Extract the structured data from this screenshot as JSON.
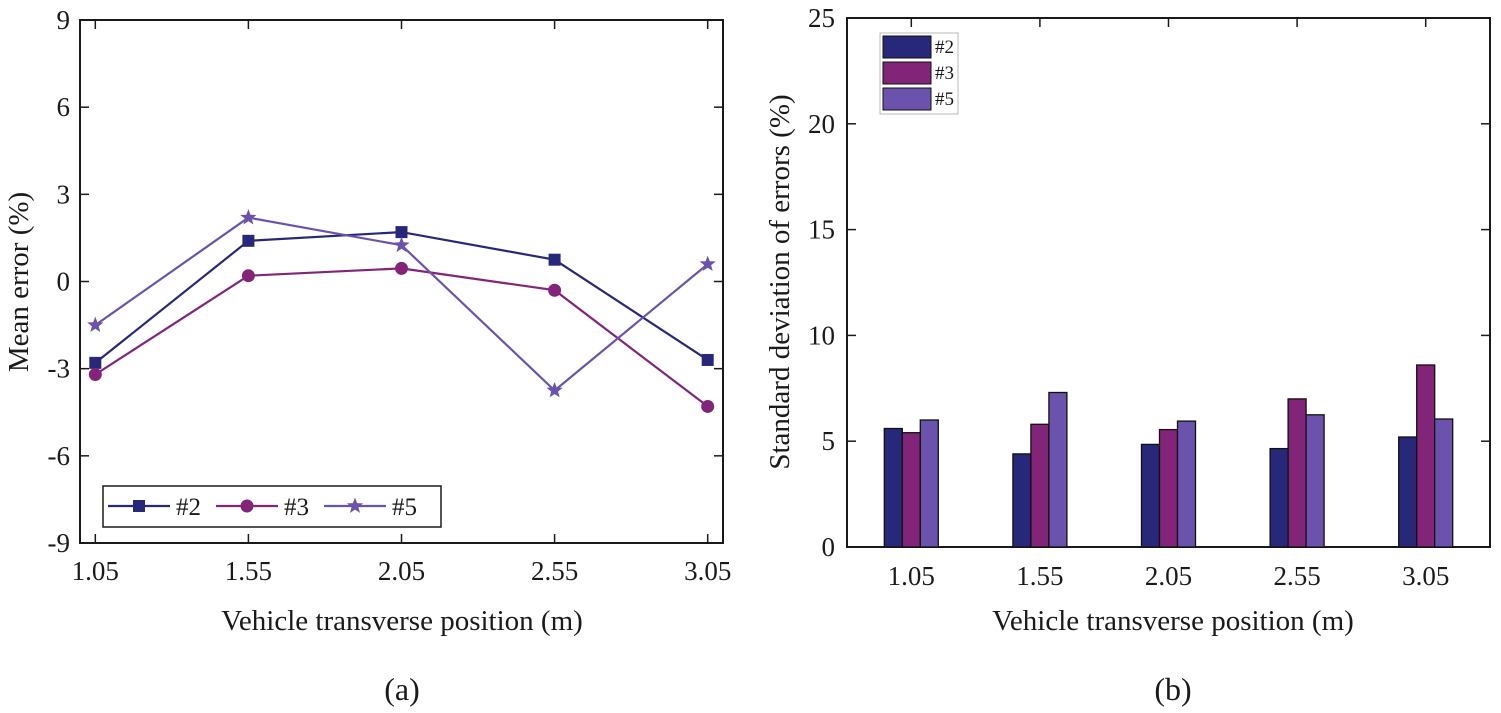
{
  "chart_data": [
    {
      "type": "line",
      "panel_label": "(a)",
      "title": "",
      "xlabel": "Vehicle transverse position (m)",
      "ylabel": "Mean error (%)",
      "x": [
        1.05,
        1.55,
        2.05,
        2.55,
        3.05
      ],
      "x_tick_labels": [
        "1.05",
        "1.55",
        "2.05",
        "2.55",
        "3.05"
      ],
      "xlim": [
        1.0,
        3.1
      ],
      "ylim": [
        -9,
        9
      ],
      "y_ticks": [
        -9,
        -6,
        -3,
        0,
        3,
        6,
        9
      ],
      "y_tick_labels": [
        "-9",
        "-6",
        "-3",
        "0",
        "3",
        "6",
        "9"
      ],
      "grid": false,
      "legend_position": "bottom-left",
      "series": [
        {
          "name": "#2",
          "marker": "square",
          "color": "#28287a",
          "values": [
            -2.8,
            1.4,
            1.7,
            0.75,
            -2.7
          ]
        },
        {
          "name": "#3",
          "marker": "circle",
          "color": "#822478",
          "values": [
            -3.2,
            0.2,
            0.45,
            -0.3,
            -4.3
          ]
        },
        {
          "name": "#5",
          "marker": "star",
          "color": "#6b53ad",
          "values": [
            -1.5,
            2.2,
            1.25,
            -3.75,
            0.6
          ]
        }
      ]
    },
    {
      "type": "bar",
      "panel_label": "(b)",
      "title": "",
      "xlabel": "Vehicle transverse position (m)",
      "ylabel": "Standard deviation of errors (%)",
      "categories": [
        "1.05",
        "1.55",
        "2.05",
        "2.55",
        "3.05"
      ],
      "ylim": [
        0,
        25
      ],
      "y_ticks": [
        0,
        5,
        10,
        15,
        20,
        25
      ],
      "y_tick_labels": [
        "0",
        "5",
        "10",
        "15",
        "20",
        "25"
      ],
      "grid": false,
      "legend_position": "top-left",
      "series": [
        {
          "name": "#2",
          "color": "#28287a",
          "values": [
            5.6,
            4.4,
            4.85,
            4.65,
            5.2
          ]
        },
        {
          "name": "#3",
          "color": "#822478",
          "values": [
            5.4,
            5.8,
            5.55,
            7.0,
            8.6
          ]
        },
        {
          "name": "#5",
          "color": "#6b53ad",
          "values": [
            6.0,
            7.3,
            5.95,
            6.25,
            6.05
          ]
        }
      ]
    }
  ]
}
